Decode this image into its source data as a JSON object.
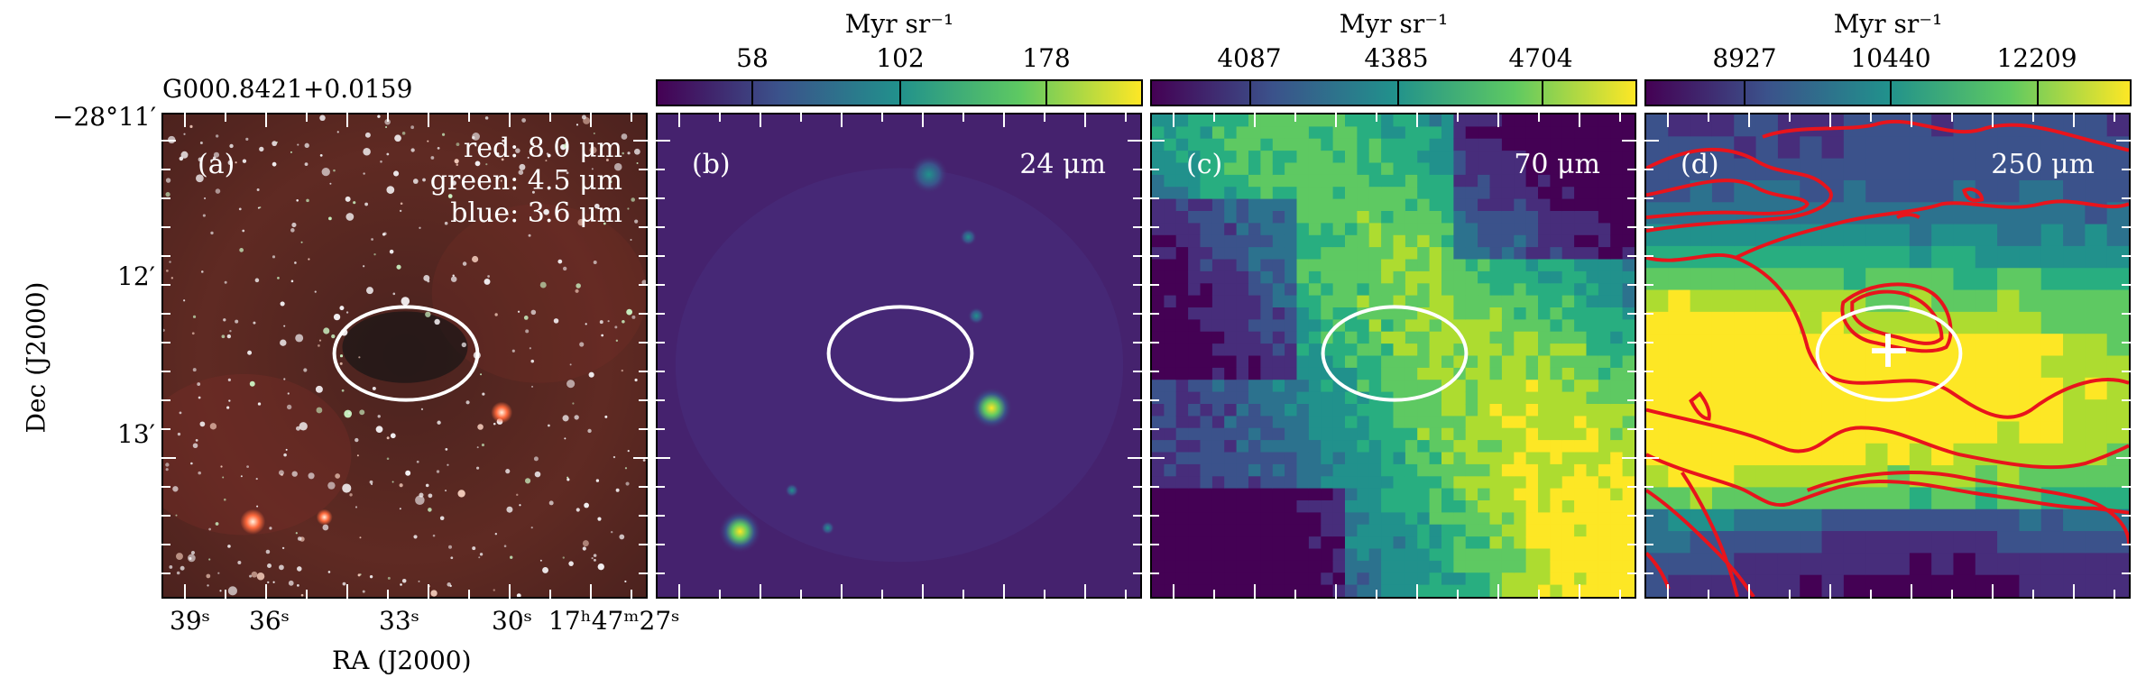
{
  "source_name": "G000.8421+0.0159",
  "panels": [
    {
      "id": "a",
      "letter": "(a)",
      "bands": [
        "red: 8.0 μm",
        "green: 4.5 μm",
        "blue: 3.6 μm"
      ]
    },
    {
      "id": "b",
      "letter": "(b)",
      "band": "24 μm"
    },
    {
      "id": "c",
      "letter": "(c)",
      "band": "70 μm"
    },
    {
      "id": "d",
      "letter": "(d)",
      "band": "250 μm"
    }
  ],
  "colorbars": [
    {
      "unit": "Myr sr⁻¹",
      "ticks": [
        "58",
        "102",
        "178"
      ]
    },
    {
      "unit": "Myr sr⁻¹",
      "ticks": [
        "4087",
        "4385",
        "4704"
      ]
    },
    {
      "unit": "Myr sr⁻¹",
      "ticks": [
        "8927",
        "10440",
        "12209"
      ]
    }
  ],
  "axes": {
    "ylabel": "Dec (J2000)",
    "xlabel": "RA (J2000)",
    "yticks": [
      "−28°11′",
      "12′",
      "13′"
    ],
    "xticks": [
      "39ˢ",
      "36ˢ",
      "33ˢ",
      "30ˢ",
      "17ʰ47ᵐ27ˢ"
    ]
  },
  "colors": {
    "viridis_low": "#440154",
    "viridis_mid": "#21918c",
    "viridis_high": "#fde725",
    "contour": "#e8141c",
    "ellipse": "#ffffff"
  }
}
